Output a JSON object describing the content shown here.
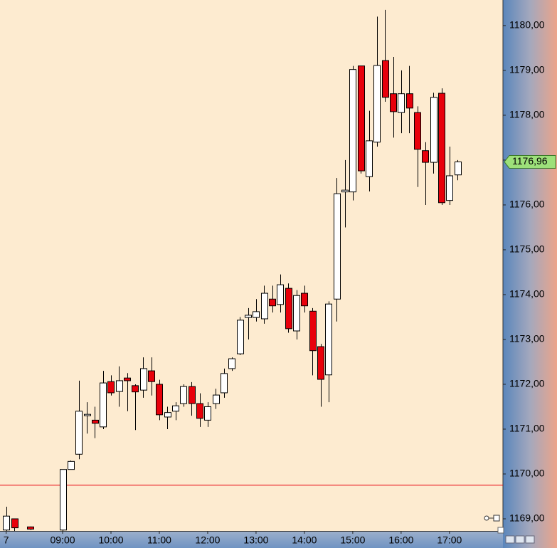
{
  "chart_data": {
    "type": "candlestick",
    "categories": [
      "7",
      null,
      null,
      null,
      null,
      null,
      null,
      "09:00",
      null,
      null,
      null,
      null,
      null,
      "10:00",
      null,
      null,
      null,
      null,
      null,
      "11:00",
      null,
      null,
      null,
      null,
      null,
      "12:00",
      null,
      null,
      null,
      null,
      null,
      "13:00",
      null,
      null,
      null,
      null,
      null,
      "14:00",
      null,
      null,
      null,
      null,
      null,
      "15:00",
      null,
      null,
      null,
      null,
      null,
      "16:00",
      null,
      null,
      null,
      null,
      null,
      "17:00",
      null
    ],
    "open": [
      1168.75,
      1169.0,
      null,
      1168.82,
      null,
      null,
      null,
      1168.75,
      1170.1,
      1170.44,
      1171.3,
      1171.2,
      1171.05,
      1172.06,
      1171.84,
      1172.14,
      1171.97,
      1171.87,
      1172.3,
      1172.0,
      1171.27,
      1171.4,
      1171.57,
      1171.95,
      1171.57,
      1171.2,
      1171.57,
      1171.81,
      1172.35,
      1172.68,
      1173.49,
      1173.49,
      1173.46,
      1173.9,
      1173.78,
      1174.14,
      1173.19,
      1174.03,
      1173.63,
      1172.84,
      1172.21,
      1173.9,
      1176.29,
      1176.29,
      1179.1,
      1176.63,
      1177.4,
      1179.22,
      1178.48,
      1178.06,
      1178.48,
      1178.06,
      1177.21,
      1176.95,
      1178.49,
      1176.1,
      1176.67
    ],
    "high": [
      1169.27,
      1169.0,
      null,
      1168.83,
      null,
      null,
      null,
      1170.1,
      1170.3,
      1172.08,
      1171.6,
      1171.5,
      1172.3,
      1172.2,
      1172.4,
      1172.25,
      1172.0,
      1172.6,
      1172.6,
      1172.1,
      1171.5,
      1171.6,
      1172.0,
      1172.05,
      1171.8,
      1171.6,
      1171.9,
      1172.35,
      1172.6,
      1173.5,
      1173.7,
      1173.9,
      1174.2,
      1174.2,
      1174.45,
      1174.25,
      1174.1,
      1174.2,
      1173.7,
      1172.9,
      1173.85,
      1176.6,
      1177.0,
      1179.1,
      1179.1,
      1178.1,
      1180.2,
      1180.35,
      1179.3,
      1179.0,
      1179.1,
      1178.2,
      1177.4,
      1178.5,
      1178.6,
      1177.3,
      1177.0
    ],
    "low": [
      1168.73,
      1168.73,
      null,
      1168.75,
      null,
      null,
      null,
      1168.73,
      1170.1,
      1170.33,
      1170.9,
      1170.8,
      1171.0,
      1171.75,
      1171.5,
      1171.4,
      1170.98,
      1171.7,
      1171.75,
      1171.2,
      1171.0,
      1171.2,
      1171.5,
      1171.3,
      1171.05,
      1171.05,
      1171.45,
      1171.7,
      1172.3,
      1172.65,
      1173.0,
      1173.4,
      1173.35,
      1173.6,
      1173.6,
      1173.15,
      1173.0,
      1173.6,
      1172.2,
      1171.5,
      1171.6,
      1173.4,
      1175.5,
      1176.1,
      1176.7,
      1176.3,
      1177.3,
      1178.3,
      1177.5,
      1177.6,
      1177.6,
      1176.4,
      1176.0,
      1176.7,
      1176.0,
      1176.0,
      1176.55
    ],
    "close": [
      1169.06,
      1168.8,
      null,
      1168.77,
      null,
      null,
      null,
      1170.1,
      1170.28,
      1171.4,
      1171.33,
      1171.13,
      1172.03,
      1171.81,
      1172.08,
      1172.08,
      1171.83,
      1172.35,
      1172.06,
      1171.32,
      1171.37,
      1171.52,
      1171.95,
      1171.57,
      1171.24,
      1171.5,
      1171.76,
      1172.24,
      1172.57,
      1173.43,
      1173.54,
      1173.62,
      1174.03,
      1173.75,
      1174.22,
      1173.24,
      1173.98,
      1173.75,
      1172.75,
      1172.11,
      1173.79,
      1176.25,
      1176.33,
      1179.02,
      1176.76,
      1177.43,
      1179.11,
      1178.4,
      1178.08,
      1178.48,
      1178.16,
      1177.24,
      1176.95,
      1178.4,
      1176.05,
      1176.65,
      1176.96
    ],
    "up_color": "#ffffff",
    "down_color": "#e8000b",
    "ylim": [
      1168.73,
      1180.57
    ],
    "yticks": [
      {
        "value": 1169,
        "label": "1169,00"
      },
      {
        "value": 1170,
        "label": "1170,00"
      },
      {
        "value": 1171,
        "label": "1171,00"
      },
      {
        "value": 1172,
        "label": "1172,00"
      },
      {
        "value": 1173,
        "label": "1173,00"
      },
      {
        "value": 1174,
        "label": "1174,00"
      },
      {
        "value": 1175,
        "label": "1175,00"
      },
      {
        "value": 1176,
        "label": "1176,00"
      },
      {
        "value": 1177,
        "label": "1177,00"
      },
      {
        "value": 1178,
        "label": "1178,00"
      },
      {
        "value": 1179,
        "label": "1179,00"
      },
      {
        "value": 1180,
        "label": "1180,00"
      }
    ],
    "last_price": {
      "value": 1176.96,
      "label": "1176,96"
    },
    "hline": {
      "value": 1169.75,
      "color": "#e8000b"
    }
  }
}
